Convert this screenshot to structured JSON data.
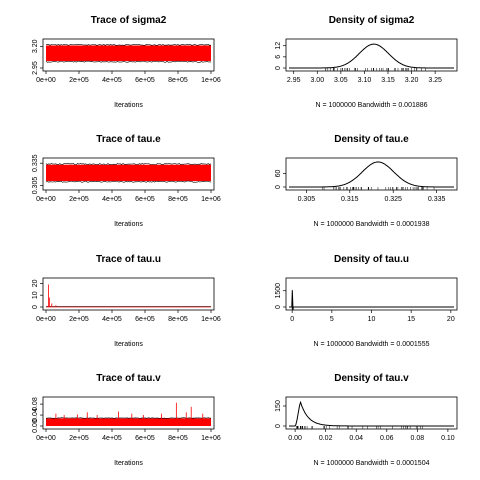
{
  "colors": {
    "trace_fill": "#ff0000",
    "trace_edge": "#000000",
    "density_line": "#000000",
    "background": "#ffffff"
  },
  "chart_data": [
    {
      "type": "line",
      "variant": "trace",
      "title": "Trace of sigma2",
      "xlabel": "Iterations",
      "xlim": [
        0,
        1000000
      ],
      "xticks": [
        0,
        200000,
        400000,
        600000,
        800000,
        1000000
      ],
      "xtick_labels": [
        "0e+00",
        "2e+05",
        "4e+05",
        "6e+05",
        "8e+05",
        "1e+06"
      ],
      "ylim": [
        2.95,
        3.25
      ],
      "yticks": [
        2.95,
        3.2
      ],
      "ytick_labels": [
        "2.95",
        "3.20"
      ],
      "band": [
        3.03,
        3.21
      ],
      "spikes": []
    },
    {
      "type": "line",
      "variant": "density",
      "title": "Density of sigma2",
      "xlabel": "N = 1000000   Bandwidth = 0.001886",
      "xlim": [
        2.94,
        3.29
      ],
      "xticks": [
        2.95,
        3.0,
        3.05,
        3.1,
        3.15,
        3.2,
        3.25
      ],
      "xtick_labels": [
        "2.95",
        "3.00",
        "3.05",
        "3.10",
        "3.15",
        "3.20",
        "3.25"
      ],
      "ylim": [
        0,
        14
      ],
      "yticks": [
        0,
        6,
        12
      ],
      "ytick_labels": [
        "0",
        "6",
        "12"
      ],
      "curve": {
        "kind": "normal",
        "mean": 3.12,
        "sd": 0.031
      }
    },
    {
      "type": "line",
      "variant": "trace",
      "title": "Trace of tau.e",
      "xlabel": "Iterations",
      "xlim": [
        0,
        1000000
      ],
      "xticks": [
        0,
        200000,
        400000,
        600000,
        800000,
        1000000
      ],
      "xtick_labels": [
        "0e+00",
        "2e+05",
        "4e+05",
        "6e+05",
        "8e+05",
        "1e+06"
      ],
      "ylim": [
        0.303,
        0.338
      ],
      "yticks": [
        0.305,
        0.335
      ],
      "ytick_labels": [
        "0.305",
        "0.335"
      ],
      "band": [
        0.311,
        0.333
      ],
      "spikes": []
    },
    {
      "type": "line",
      "variant": "density",
      "title": "Density of tau.e",
      "xlabel": "N = 1000000   Bandwidth = 0.0001938",
      "xlim": [
        0.301,
        0.339
      ],
      "xticks": [
        0.305,
        0.315,
        0.325,
        0.335
      ],
      "xtick_labels": [
        "0.305",
        "0.315",
        "0.325",
        "0.335"
      ],
      "ylim": [
        0,
        115
      ],
      "yticks": [
        0,
        60
      ],
      "ytick_labels": [
        "0",
        "60"
      ],
      "curve": {
        "kind": "normal",
        "mean": 0.3215,
        "sd": 0.0036
      }
    },
    {
      "type": "line",
      "variant": "trace",
      "title": "Trace of tau.u",
      "xlabel": "Iterations",
      "xlim": [
        0,
        1000000
      ],
      "xticks": [
        0,
        200000,
        400000,
        600000,
        800000,
        1000000
      ],
      "xtick_labels": [
        "0e+00",
        "2e+05",
        "4e+05",
        "6e+05",
        "8e+05",
        "1e+06"
      ],
      "ylim": [
        0,
        22
      ],
      "yticks": [
        0,
        10,
        20
      ],
      "ytick_labels": [
        "0",
        "10",
        "20"
      ],
      "band": [
        0,
        0.4
      ],
      "spikes": [
        [
          15000,
          19
        ],
        [
          22000,
          8
        ],
        [
          35000,
          3
        ],
        [
          60000,
          1.5
        ]
      ]
    },
    {
      "type": "line",
      "variant": "density",
      "title": "Density of tau.u",
      "xlabel": "N = 1000000   Bandwidth = 0.0001555",
      "xlim": [
        -0.4,
        20.4
      ],
      "xticks": [
        0,
        5,
        10,
        15,
        20
      ],
      "xtick_labels": [
        "0",
        "5",
        "10",
        "15",
        "20"
      ],
      "ylim": [
        0,
        2400
      ],
      "yticks": [
        0,
        1500
      ],
      "ytick_labels": [
        "0",
        "1500"
      ],
      "curve": {
        "kind": "spike",
        "at": 0.0,
        "peak": 2300,
        "width": 0.05
      }
    },
    {
      "type": "line",
      "variant": "trace",
      "title": "Trace of tau.v",
      "xlabel": "Iterations",
      "xlim": [
        0,
        1000000
      ],
      "xticks": [
        0,
        200000,
        400000,
        600000,
        800000,
        1000000
      ],
      "xtick_labels": [
        "0e+00",
        "2e+05",
        "4e+05",
        "6e+05",
        "8e+05",
        "1e+06"
      ],
      "ylim": [
        0,
        0.095
      ],
      "yticks": [
        0.0,
        0.04,
        0.08
      ],
      "ytick_labels": [
        "0.00",
        "0.04",
        "0.08"
      ],
      "band": [
        0.0,
        0.028
      ],
      "spikes": [
        [
          60000,
          0.045
        ],
        [
          110000,
          0.04
        ],
        [
          190000,
          0.042
        ],
        [
          250000,
          0.05
        ],
        [
          310000,
          0.04
        ],
        [
          440000,
          0.053
        ],
        [
          520000,
          0.045
        ],
        [
          590000,
          0.04
        ],
        [
          700000,
          0.045
        ],
        [
          790000,
          0.085
        ],
        [
          850000,
          0.05
        ],
        [
          880000,
          0.07
        ],
        [
          950000,
          0.045
        ]
      ]
    },
    {
      "type": "line",
      "variant": "density",
      "title": "Density of tau.v",
      "xlabel": "N = 1000000   Bandwidth = 0.0001504",
      "xlim": [
        -0.004,
        0.104
      ],
      "xticks": [
        0.0,
        0.02,
        0.04,
        0.06,
        0.08,
        0.1
      ],
      "xtick_labels": [
        "0.00",
        "0.02",
        "0.04",
        "0.06",
        "0.08",
        "0.10"
      ],
      "ylim": [
        0,
        195
      ],
      "yticks": [
        0,
        150
      ],
      "ytick_labels": [
        "0",
        "150"
      ],
      "curve": {
        "kind": "skewed",
        "mode": 0.0035,
        "peak": 180,
        "tail": 0.0055
      }
    }
  ]
}
